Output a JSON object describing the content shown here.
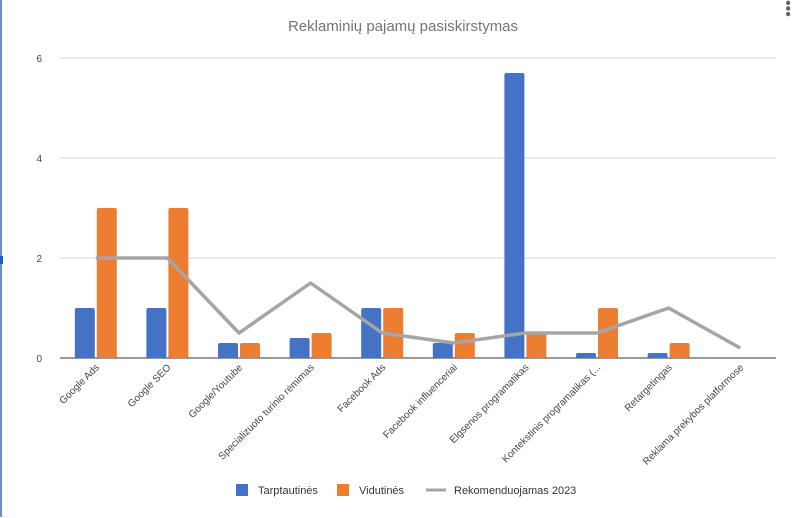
{
  "chart_data": {
    "type": "bar",
    "title": "Reklaminių pajamų pasiskirstymas",
    "xlabel": "",
    "ylabel": "",
    "ylim": [
      0,
      6
    ],
    "yticks": [
      0,
      2,
      4,
      6
    ],
    "grid": true,
    "legend_position": "bottom",
    "categories": [
      "Google Ads",
      "Google SEO",
      "Google/Youtube",
      "Specializuoto turinio  rėmimas",
      "Facebook Ads",
      "Facebook influenceriai",
      "Elgsenos programatikas",
      "Kontekstinis programatikas (...",
      "Retargetingas",
      "Reklama prekybos platformose"
    ],
    "series": [
      {
        "name": "Tarptautinės",
        "kind": "bar",
        "color": "#4472c4",
        "values": [
          1,
          1,
          0.3,
          0.4,
          1,
          0.3,
          5.7,
          0.1,
          0.1,
          0
        ]
      },
      {
        "name": "Vidutinės",
        "kind": "bar",
        "color": "#ed7d31",
        "values": [
          3,
          3,
          0.3,
          0.5,
          1,
          0.5,
          0.5,
          1,
          0.3,
          0
        ]
      },
      {
        "name": "Rekomenduojamas 2023",
        "kind": "line",
        "color": "#a5a5a5",
        "values": [
          2,
          2,
          0.5,
          1.5,
          0.5,
          0.3,
          0.5,
          0.5,
          1,
          0.2
        ]
      }
    ]
  },
  "ui": {
    "menu_icon": "more-vert-icon"
  }
}
